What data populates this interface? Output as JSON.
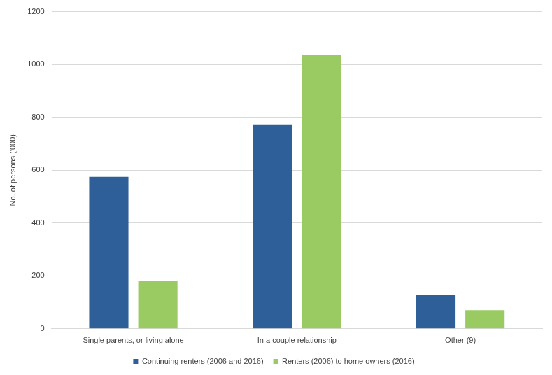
{
  "chart_data": {
    "type": "bar",
    "ylabel": "No. of persons ('000)",
    "categories": [
      "Single parents, or living alone",
      "In a couple relationship",
      "Other (9)"
    ],
    "series": [
      {
        "name": "Continuing renters (2006 and 2016)",
        "color": "#2e5f98",
        "values": [
          575,
          773,
          128
        ]
      },
      {
        "name": "Renters (2006) to home owners (2016)",
        "color": "#99cb62",
        "values": [
          182,
          1035,
          70
        ]
      }
    ],
    "ylim": [
      0,
      1200
    ],
    "yticks": [
      0,
      200,
      400,
      600,
      800,
      1000,
      1200
    ],
    "grid": true,
    "legend": "bottom"
  }
}
